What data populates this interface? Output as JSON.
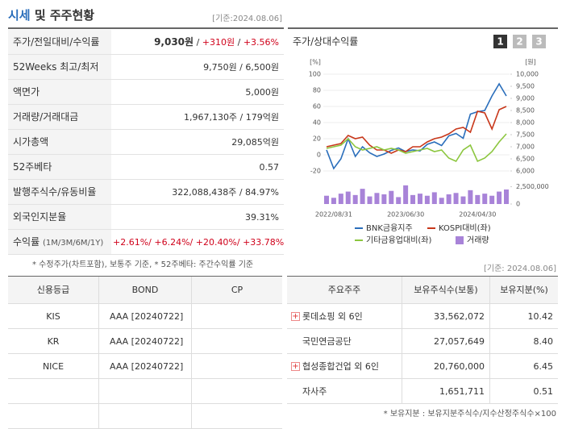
{
  "header": {
    "title_highlight": "시세",
    "title_rest": "및 주주현황",
    "date": "[기준:2024.08.06]"
  },
  "summary": {
    "rows": [
      {
        "label": "주가/전일대비/수익률",
        "value": [
          {
            "text": "9,030원",
            "bold": true
          },
          {
            "text": " / "
          },
          {
            "text": "+310원",
            "color": "#d0021b"
          },
          {
            "text": " / "
          },
          {
            "text": "+3.56%",
            "color": "#d0021b"
          }
        ]
      },
      {
        "label": "52Weeks 최고/최저",
        "value": [
          {
            "text": "9,750원 / 6,500원"
          }
        ]
      },
      {
        "label": "액면가",
        "value": [
          {
            "text": "5,000원"
          }
        ]
      },
      {
        "label": "거래량/거래대금",
        "value": [
          {
            "text": "1,967,130주 / 179억원"
          }
        ]
      },
      {
        "label": "시가총액",
        "value": [
          {
            "text": "29,085억원"
          }
        ]
      },
      {
        "label": "52주베타",
        "value": [
          {
            "text": "0.57"
          }
        ]
      },
      {
        "label": "발행주식수/유동비율",
        "value": [
          {
            "text": "322,088,438주 / 84.97%"
          }
        ]
      },
      {
        "label": "외국인지분율",
        "value": [
          {
            "text": "39.31%"
          }
        ]
      },
      {
        "label": "수익률",
        "label_note": "(1M/3M/6M/1Y)",
        "value": [
          {
            "text": "+2.61%/ +6.24%/ +20.40%/ +33.78%",
            "color": "#d0021b"
          }
        ]
      }
    ],
    "note": "* 수정주가(차트포함), 보통주 기준, * 52주베타: 주간수익률 기준"
  },
  "chart_data": {
    "type": "line",
    "title": "주가/상대수익률",
    "tabs": [
      "1",
      "2",
      "3"
    ],
    "y_unit": "[%]",
    "y2_unit": "[원]",
    "categories": [
      null,
      "2022/08/31",
      null,
      null,
      null,
      null,
      null,
      null,
      null,
      null,
      null,
      "2023/06/30",
      null,
      null,
      null,
      null,
      null,
      null,
      null,
      null,
      null,
      "2024/04/30",
      null,
      null,
      null,
      null
    ],
    "ylim": [
      -20,
      100
    ],
    "yticks": [
      -20,
      0,
      20,
      40,
      60,
      80,
      100
    ],
    "y2lim": [
      6000,
      10000
    ],
    "y2ticks": [
      {
        "value": 6000,
        "label": "6,000"
      },
      {
        "value": 6500,
        "label": "6,500"
      },
      {
        "value": 7000,
        "label": "7,000"
      },
      {
        "value": 7500,
        "label": "7,500"
      },
      {
        "value": 8000,
        "label": "8,000"
      },
      {
        "value": 8500,
        "label": "8,500"
      },
      {
        "value": 9000,
        "label": "9,000"
      },
      {
        "value": 9500,
        "label": "9,500"
      },
      {
        "value": 10000,
        "label": "10,000"
      }
    ],
    "grid": true,
    "series": [
      {
        "name": "BNK금융지주",
        "color": "#2a6ebb",
        "axis": "y2",
        "values": [
          6870,
          6100,
          6500,
          7330,
          6600,
          7000,
          6750,
          6600,
          6700,
          6850,
          6950,
          6800,
          6870,
          6830,
          7100,
          7200,
          7050,
          7450,
          7550,
          7350,
          8350,
          8450,
          8500,
          9100,
          9600,
          9100
        ]
      },
      {
        "name": "KOSPI대비(좌)",
        "color": "#c8371a",
        "values": [
          10,
          12,
          14,
          24,
          20,
          22,
          12,
          6,
          6,
          2,
          6,
          4,
          10,
          10,
          16,
          20,
          22,
          26,
          32,
          34,
          28,
          54,
          52,
          32,
          56,
          60
        ]
      },
      {
        "name": "기타금융업대비(좌)",
        "color": "#8cc63f",
        "values": [
          8,
          10,
          12,
          20,
          10,
          6,
          8,
          10,
          6,
          8,
          6,
          2,
          4,
          6,
          8,
          4,
          6,
          -4,
          -8,
          6,
          12,
          -8,
          -4,
          4,
          16,
          26
        ]
      }
    ],
    "volume": {
      "name": "거래량",
      "color": "#a883d8",
      "ylim": [
        0,
        3500000
      ],
      "yticks": [
        0,
        {
          "value": 2500000,
          "label": "2,500,000"
        }
      ],
      "values": [
        1200000,
        900000,
        1500000,
        1800000,
        1300000,
        2200000,
        1100000,
        1600000,
        1400000,
        1900000,
        1000000,
        2700000,
        1300000,
        1500000,
        1200000,
        1700000,
        900000,
        1400000,
        1600000,
        1100000,
        2000000,
        1300000,
        1500000,
        1200000,
        1800000,
        2100000
      ]
    }
  },
  "section_date": "[기준: 2024.08.06]",
  "ratings": {
    "headers": [
      "신용등급",
      "BOND",
      "CP"
    ],
    "rows": [
      [
        "KIS",
        "AAA [20240722]"
      ],
      [
        "KR",
        "AAA [20240722]"
      ],
      [
        "NICE",
        "AAA [20240722]"
      ]
    ]
  },
  "shareholders": {
    "headers": [
      "주요주주",
      "보유주식수(보통)",
      "보유지분(%)"
    ],
    "rows": [
      {
        "name": "롯데쇼핑 외 6인",
        "shares": "33,562,072",
        "pct": "10.42",
        "expand": true
      },
      {
        "name": "국민연금공단",
        "shares": "27,057,649",
        "pct": "8.40"
      },
      {
        "name": "협성종합건업 외 6인",
        "shares": "20,760,000",
        "pct": "6.45",
        "expand": true
      },
      {
        "name": "자사주",
        "shares": "1,651,711",
        "pct": "0.51"
      }
    ],
    "note": "* 보유지분 : 보유지분주식수/지수산정주식수×100"
  }
}
